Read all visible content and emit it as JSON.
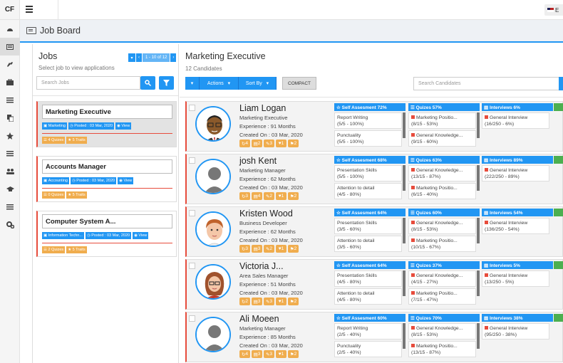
{
  "app": {
    "logo": "CF",
    "lang": "E"
  },
  "header": {
    "title": "Job Board"
  },
  "jobs_panel": {
    "title": "Jobs",
    "subtitle": "Select job to view applications",
    "pager": "1 - 10 of 12",
    "search_placeholder": "Search Jobs",
    "jobs": [
      {
        "title": "Marketing Executive",
        "dept": "Marketing",
        "posted": "Posted : 03 Mar, 2020",
        "view": "View",
        "quizes": "4 Quizes",
        "traits": "5 Traits"
      },
      {
        "title": "Accounts Manager",
        "dept": "Accounting",
        "posted": "Posted : 03 Mar, 2020",
        "view": "View",
        "quizes": "0 Quizes",
        "traits": "5 Traits"
      },
      {
        "title": "Computer System A...",
        "dept": "Information Techn...",
        "posted": "Posted : 03 Mar, 2020",
        "view": "View",
        "quizes": "2 Quizes",
        "traits": "5 Traits"
      }
    ]
  },
  "main": {
    "title": "Marketing Executive",
    "subtitle": "12 Candidates",
    "actions": "Actions",
    "sort": "Sort By",
    "compact": "COMPACT",
    "search_placeholder": "Search Candidates"
  },
  "candidates": [
    {
      "name": "Liam Logan",
      "role": "Marketing Executive",
      "exp": "Experience : 91 Months",
      "created": "Created On : 03 Mar, 2020",
      "b": [
        "4",
        "2",
        "3",
        "1",
        "2"
      ],
      "self": "Self Assesment 72%",
      "s1": "Report Writing",
      "s1v": "(5/5 - 100%)",
      "s2": "Punctuality",
      "s2v": "(5/5 - 100%)",
      "quiz": "Quizes 57%",
      "q1": "Marketing Positio...",
      "q1v": "(8/15 - 53%)",
      "q2": "General Knowledge...",
      "q2v": "(9/15 - 60%)",
      "int": "Interviews 6%",
      "i1": "General Interview",
      "i1v": "(16/250 - 6%)"
    },
    {
      "name": "josh Kent",
      "role": "Marketing Manager",
      "exp": "Experience : 62 Months",
      "created": "Created On : 03 Mar, 2020",
      "b": [
        "3",
        "4",
        "2",
        "1",
        "2"
      ],
      "self": "Self Assesment 68%",
      "s1": "Presentation Skills",
      "s1v": "(5/5 - 100%)",
      "s2": "Attention to detail",
      "s2v": "(4/5 - 80%)",
      "quiz": "Quizes 63%",
      "q1": "General Knowledge...",
      "q1v": "(13/15 - 87%)",
      "q2": "Marketing Positio...",
      "q2v": "(6/15 - 40%)",
      "int": "Interviews 89%",
      "i1": "General Interview",
      "i1v": "(222/250 - 89%)"
    },
    {
      "name": "Kristen Wood",
      "role": "Business Developer",
      "exp": "Experience : 62 Months",
      "created": "Created On : 03 Mar, 2020",
      "b": [
        "3",
        "3",
        "2",
        "1",
        "2"
      ],
      "self": "Self Assesment 64%",
      "s1": "Presentation Skills",
      "s1v": "(3/5 - 60%)",
      "s2": "Attention to detail",
      "s2v": "(3/5 - 60%)",
      "quiz": "Quizes 60%",
      "q1": "General Knowledge...",
      "q1v": "(8/15 - 53%)",
      "q2": "Marketing Positio...",
      "q2v": "(10/15 - 67%)",
      "int": "Interviews 54%",
      "i1": "General Interview",
      "i1v": "(136/250 - 54%)"
    },
    {
      "name": "Victoria J...",
      "role": "Area Sales Manager",
      "exp": "Experience : 51 Months",
      "created": "Created On : 03 Mar, 2020",
      "b": [
        "2",
        "3",
        "3",
        "1",
        "2"
      ],
      "self": "Self Assesment 64%",
      "s1": "Presentation Skills",
      "s1v": "(4/5 - 80%)",
      "s2": "Attention to detail",
      "s2v": "(4/5 - 80%)",
      "quiz": "Quizes 37%",
      "q1": "General Knowledge...",
      "q1v": "(4/15 - 27%)",
      "q2": "Marketing Positio...",
      "q2v": "(7/15 - 47%)",
      "int": "Interviews 5%",
      "i1": "General Interview",
      "i1v": "(13/250 - 5%)"
    },
    {
      "name": "Ali Moeen",
      "role": "Marketing Manager",
      "exp": "Experience : 85 Months",
      "created": "Created On : 03 Mar, 2020",
      "b": [
        "4",
        "3",
        "3",
        "1",
        "2"
      ],
      "self": "Self Assesment 60%",
      "s1": "Report Writing",
      "s1v": "(2/5 - 40%)",
      "s2": "Punctuality",
      "s2v": "(2/5 - 40%)",
      "quiz": "Quizes 70%",
      "q1": "General Knowledge...",
      "q1v": "(8/15 - 53%)",
      "q2": "Marketing Positio...",
      "q2v": "(13/15 - 87%)",
      "int": "Interviews 38%",
      "i1": "General Interview",
      "i1v": "(95/250 - 38%)"
    }
  ]
}
